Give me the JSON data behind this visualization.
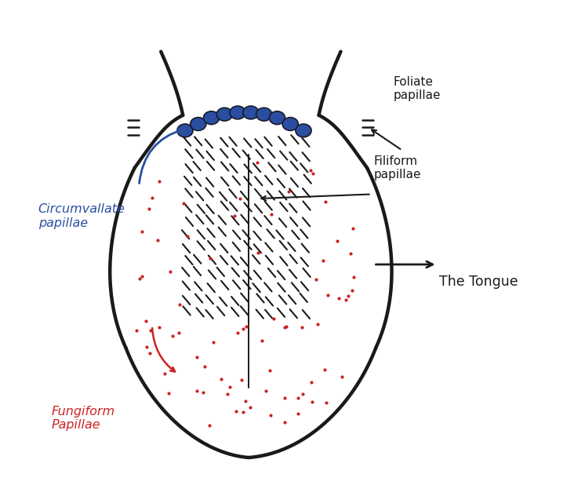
{
  "bg_color": "#ffffff",
  "tongue_outline_color": "#1a1a1a",
  "tongue_lw": 3.2,
  "circumvallate_color": "#2a4fa0",
  "fungiform_color": "#cc2222",
  "filiform_color": "#1a1a1a",
  "label_circumvallate": "Circumvallate\npapillae",
  "label_foliate": "Foliate\npapillae",
  "label_filiform": "Filiform\npapillae",
  "label_fungiform": "Fungiform\nPapillae",
  "label_tongue": "The Tongue",
  "circ_positions": [
    [
      3.55,
      8.05
    ],
    [
      3.85,
      8.2
    ],
    [
      4.15,
      8.34
    ],
    [
      4.45,
      8.42
    ],
    [
      4.75,
      8.46
    ],
    [
      5.05,
      8.46
    ],
    [
      5.35,
      8.42
    ],
    [
      5.65,
      8.34
    ],
    [
      5.95,
      8.2
    ],
    [
      6.25,
      8.05
    ]
  ],
  "xlim": [
    0,
    12
  ],
  "ylim": [
    0,
    11
  ]
}
